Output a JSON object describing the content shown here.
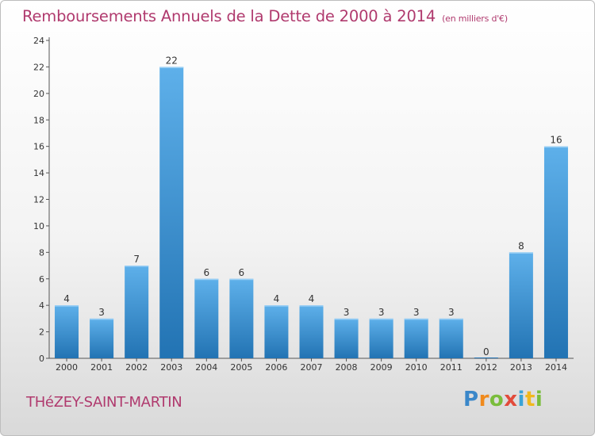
{
  "header": {
    "title": "Remboursements Annuels de la Dette de 2000 à 2014",
    "unit_note": "(en milliers d'€)"
  },
  "footer": {
    "commune": "THéZEY-SAINT-MARTIN",
    "logo": "Proxiti"
  },
  "colors": {
    "title": "#b03a6e",
    "bar_top": "#5eb0ea",
    "bar_bottom": "#2273b3"
  },
  "chart_data": {
    "type": "bar",
    "title": "Remboursements Annuels de la Dette de 2000 à 2014",
    "xlabel": "",
    "ylabel": "",
    "categories": [
      "2000",
      "2001",
      "2002",
      "2003",
      "2004",
      "2005",
      "2006",
      "2007",
      "2008",
      "2009",
      "2010",
      "2011",
      "2012",
      "2013",
      "2014"
    ],
    "values": [
      4,
      3,
      7,
      22,
      6,
      6,
      4,
      4,
      3,
      3,
      3,
      3,
      0,
      8,
      16
    ],
    "ylim": [
      0,
      24
    ],
    "yticks": [
      0,
      2,
      4,
      6,
      8,
      10,
      12,
      14,
      16,
      18,
      20,
      22,
      24
    ],
    "grid": false,
    "legend": "none"
  }
}
